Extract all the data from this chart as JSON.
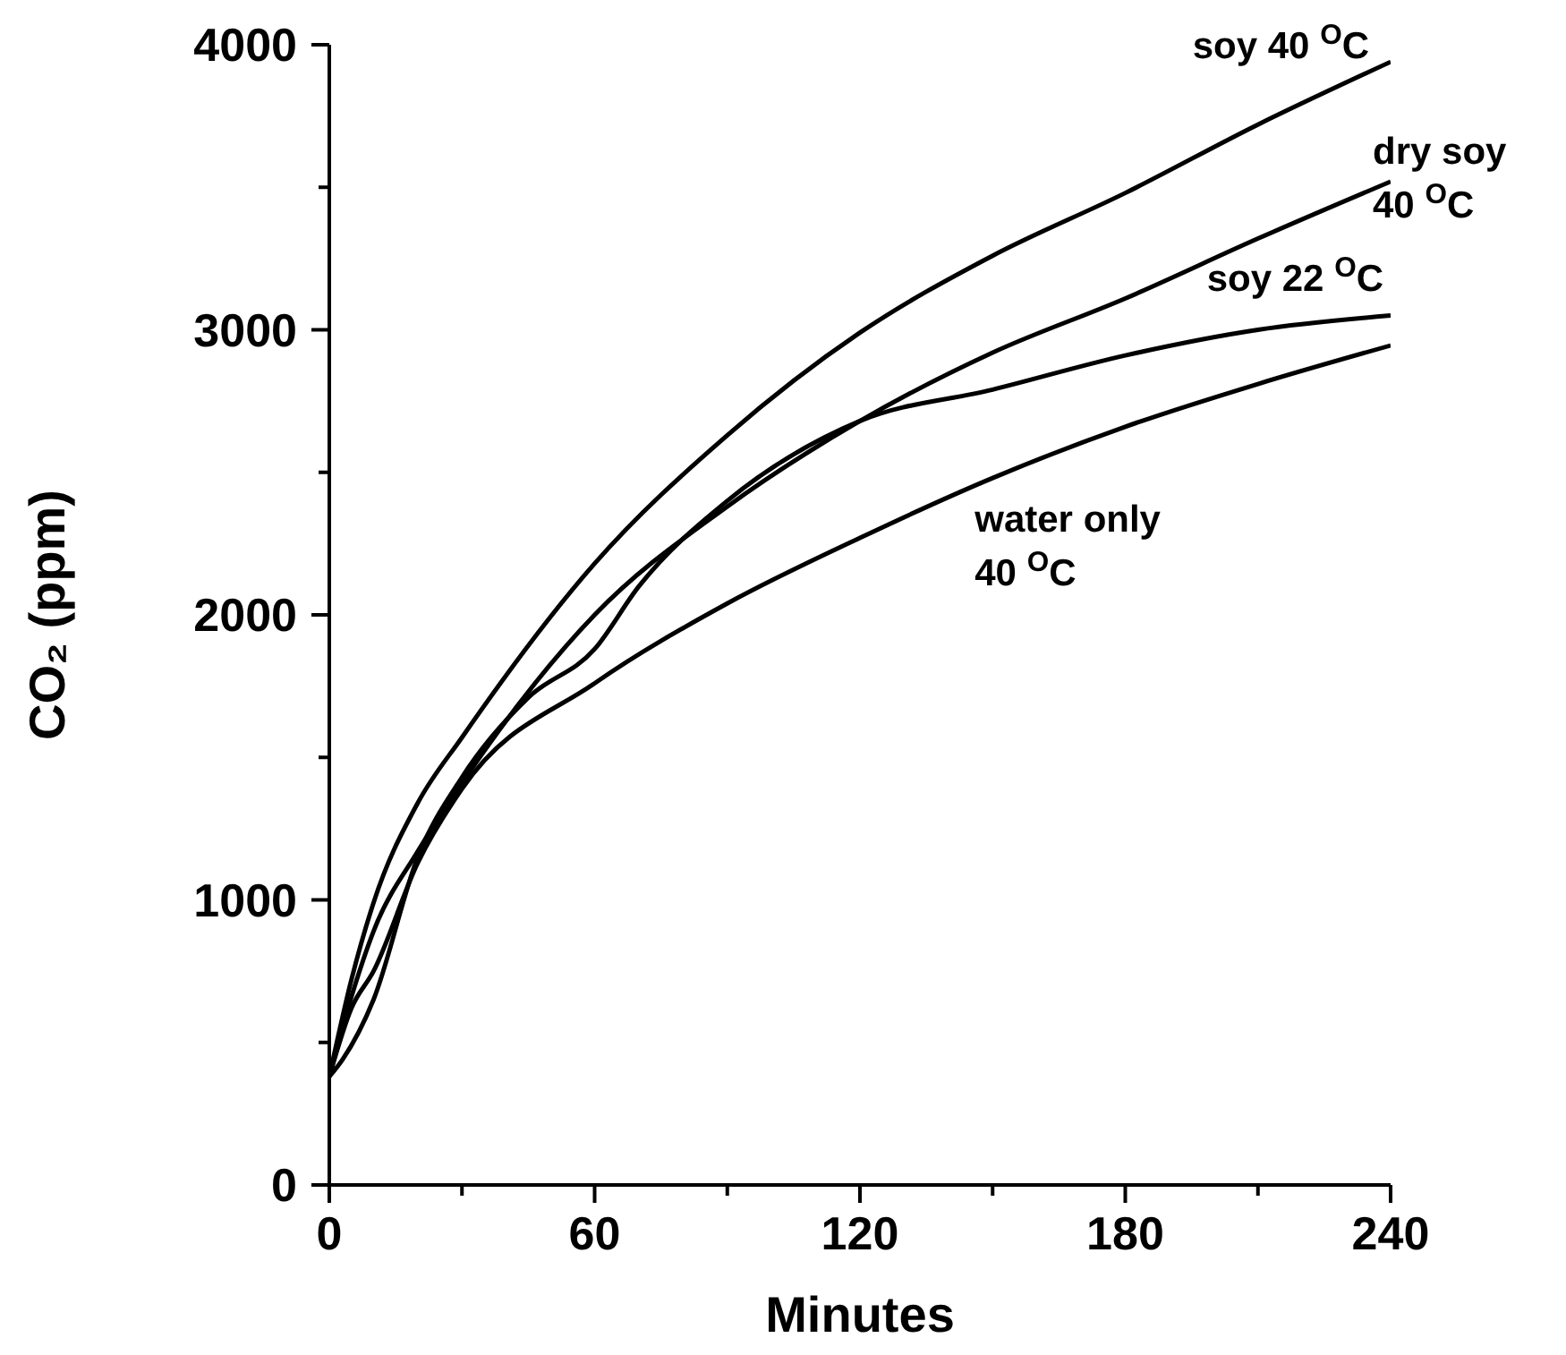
{
  "chart_data": {
    "type": "line",
    "xlabel": "Minutes",
    "ylabel": "CO₂ (ppm)",
    "xlim": [
      0,
      240
    ],
    "ylim": [
      0,
      4000
    ],
    "xticks": [
      0,
      {
        "value": 30,
        "label": null
      },
      60,
      {
        "value": 90,
        "label": null
      },
      120,
      {
        "value": 150,
        "label": null
      },
      180,
      {
        "value": 210,
        "label": null
      },
      240
    ],
    "yticks": [
      0,
      {
        "value": 500,
        "label": null
      },
      1000,
      {
        "value": 1500,
        "label": null
      },
      2000,
      {
        "value": 2500,
        "label": null
      },
      3000,
      {
        "value": 3500,
        "label": null
      },
      4000
    ],
    "grid": false,
    "legend": false,
    "series": [
      {
        "name": "soy 40 $^{O}$C",
        "color": "#000000",
        "x": [
          0,
          5,
          10,
          20,
          30,
          60,
          90,
          120,
          150,
          180,
          210,
          240
        ],
        "values": [
          380,
          720,
          990,
          1340,
          1570,
          2180,
          2630,
          2990,
          3260,
          3480,
          3720,
          3940
        ]
      },
      {
        "name": "dry soy 40 $^{O}$C",
        "color": "#000000",
        "x": [
          0,
          5,
          10,
          20,
          30,
          60,
          90,
          120,
          150,
          180,
          210,
          240
        ],
        "values": [
          380,
          660,
          890,
          1170,
          1410,
          2000,
          2380,
          2680,
          2920,
          3110,
          3320,
          3520
        ]
      },
      {
        "name": "soy 22 $^{O}$C",
        "color": "#000000",
        "x": [
          0,
          3,
          10,
          20,
          30,
          45,
          60,
          70,
          90,
          120,
          150,
          180,
          210,
          240
        ],
        "values": [
          380,
          440,
          650,
          1150,
          1430,
          1710,
          1880,
          2100,
          2400,
          2680,
          2790,
          2910,
          3000,
          3050
        ]
      },
      {
        "name": "water only 40 $^{O}$C",
        "color": "#000000",
        "x": [
          0,
          5,
          10,
          20,
          30,
          60,
          90,
          120,
          150,
          180,
          210,
          240
        ],
        "values": [
          380,
          620,
          750,
          1130,
          1390,
          1760,
          2040,
          2270,
          2480,
          2660,
          2810,
          2945
        ]
      }
    ]
  }
}
